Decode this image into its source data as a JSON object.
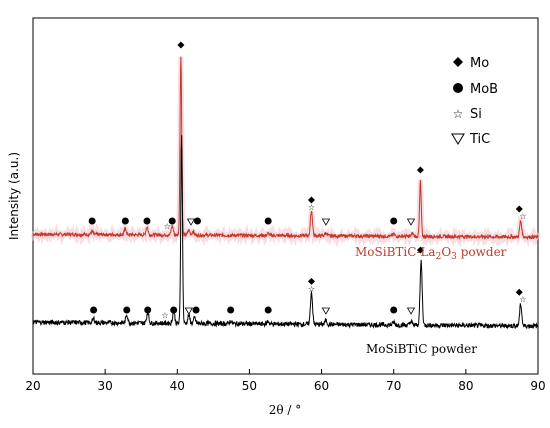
{
  "chart_data": {
    "type": "line",
    "xlabel": "2θ / °",
    "ylabel": "Intensity (a.u.)",
    "xlim": [
      20,
      90
    ],
    "xticks": [
      20,
      30,
      40,
      50,
      60,
      70,
      80,
      90
    ],
    "grid": false,
    "legend": {
      "placement": "top-right",
      "entries": [
        {
          "marker": "diamond",
          "label": "Mo"
        },
        {
          "marker": "circle",
          "label": "MoB"
        },
        {
          "marker": "star",
          "label": "Si"
        },
        {
          "marker": "triangle-down",
          "label": "TiC"
        }
      ]
    },
    "series": [
      {
        "label_main": "MoSiBTiC-La",
        "label_sub": "2",
        "label_mid": "O",
        "label_sub2": "3",
        "label_tail": " powder",
        "color": "#c0392b",
        "baseline": 0.5,
        "peaks": [
          {
            "x": 28.2,
            "y": 0.3
          },
          {
            "x": 32.8,
            "y": 0.6
          },
          {
            "x": 35.8,
            "y": 0.8
          },
          {
            "x": 39.3,
            "y": 0.9
          },
          {
            "x": 40.5,
            "y": 18.0
          },
          {
            "x": 41.6,
            "y": 0.5
          },
          {
            "x": 42.2,
            "y": 0.4
          },
          {
            "x": 52.6,
            "y": 0.2
          },
          {
            "x": 58.6,
            "y": 2.5
          },
          {
            "x": 60.6,
            "y": 0.3
          },
          {
            "x": 70.0,
            "y": 0.2
          },
          {
            "x": 72.6,
            "y": 0.3
          },
          {
            "x": 73.7,
            "y": 5.5
          },
          {
            "x": 87.6,
            "y": 1.6
          }
        ]
      },
      {
        "label": "MoSiBTiC powder",
        "color": "#000000",
        "baseline": 0,
        "peaks": [
          {
            "x": 28.4,
            "y": 0.3
          },
          {
            "x": 33.0,
            "y": 0.6
          },
          {
            "x": 35.9,
            "y": 0.8
          },
          {
            "x": 39.5,
            "y": 0.9
          },
          {
            "x": 40.6,
            "y": 14.0
          },
          {
            "x": 41.6,
            "y": 0.6
          },
          {
            "x": 42.4,
            "y": 0.4
          },
          {
            "x": 47.4,
            "y": 0.2
          },
          {
            "x": 52.6,
            "y": 0.2
          },
          {
            "x": 58.6,
            "y": 2.4
          },
          {
            "x": 60.6,
            "y": 0.3
          },
          {
            "x": 70.0,
            "y": 0.2
          },
          {
            "x": 72.4,
            "y": 0.3
          },
          {
            "x": 73.8,
            "y": 4.7
          },
          {
            "x": 87.6,
            "y": 1.6
          }
        ]
      }
    ],
    "markers": [
      {
        "series": 0,
        "type": "circle",
        "x": 28.2
      },
      {
        "series": 0,
        "type": "circle",
        "x": 32.8
      },
      {
        "series": 0,
        "type": "circle",
        "x": 35.8
      },
      {
        "series": 0,
        "type": "star",
        "x": 38.6
      },
      {
        "series": 0,
        "type": "circle",
        "x": 39.3
      },
      {
        "series": 0,
        "type": "diamond",
        "x": 40.5
      },
      {
        "series": 0,
        "type": "triangle-down",
        "x": 41.9
      },
      {
        "series": 0,
        "type": "circle",
        "x": 42.8
      },
      {
        "series": 0,
        "type": "circle",
        "x": 52.6
      },
      {
        "series": 0,
        "type": "diamond",
        "x": 58.6
      },
      {
        "series": 0,
        "type": "star",
        "x": 58.6
      },
      {
        "series": 0,
        "type": "triangle-down",
        "x": 60.6
      },
      {
        "series": 0,
        "type": "circle",
        "x": 70.0
      },
      {
        "series": 0,
        "type": "triangle-down",
        "x": 72.4
      },
      {
        "series": 0,
        "type": "diamond",
        "x": 73.7
      },
      {
        "series": 0,
        "type": "diamond",
        "x": 87.4
      },
      {
        "series": 0,
        "type": "star",
        "x": 87.9
      },
      {
        "series": 1,
        "type": "circle",
        "x": 28.4
      },
      {
        "series": 1,
        "type": "circle",
        "x": 33.0
      },
      {
        "series": 1,
        "type": "circle",
        "x": 35.9
      },
      {
        "series": 1,
        "type": "star",
        "x": 38.3
      },
      {
        "series": 1,
        "type": "circle",
        "x": 39.5
      },
      {
        "series": 1,
        "type": "triangle-down",
        "x": 41.6
      },
      {
        "series": 1,
        "type": "circle",
        "x": 42.6
      },
      {
        "series": 1,
        "type": "circle",
        "x": 47.4
      },
      {
        "series": 1,
        "type": "circle",
        "x": 52.6
      },
      {
        "series": 1,
        "type": "diamond",
        "x": 58.6
      },
      {
        "series": 1,
        "type": "star",
        "x": 58.6
      },
      {
        "series": 1,
        "type": "triangle-down",
        "x": 60.6
      },
      {
        "series": 1,
        "type": "circle",
        "x": 70.0
      },
      {
        "series": 1,
        "type": "triangle-down",
        "x": 72.4
      },
      {
        "series": 1,
        "type": "diamond",
        "x": 73.7
      },
      {
        "series": 1,
        "type": "diamond",
        "x": 87.4
      },
      {
        "series": 1,
        "type": "star",
        "x": 87.9
      }
    ]
  }
}
